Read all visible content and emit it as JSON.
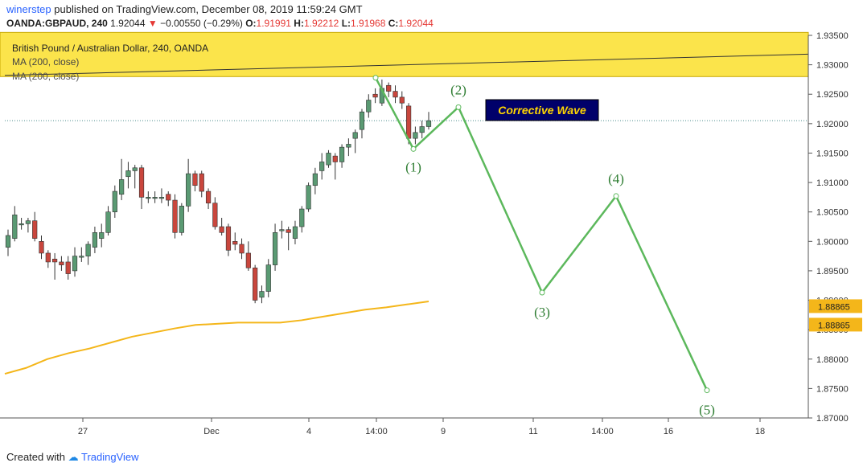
{
  "header": {
    "user": "winerstep",
    "published_text": "published on TradingView.com, December 08, 2019 11:59:24 GMT",
    "symbol_line": "OANDA:GBPAUD, 240",
    "last_price": "1.92044",
    "change": "−0.00550 (−0.29%)",
    "open_label": "O:",
    "open": "1.91991",
    "high_label": "H:",
    "high": "1.92212",
    "low_label": "L:",
    "low": "1.91968",
    "close_label": "C:",
    "close": "1.92044"
  },
  "legend": {
    "title": "British Pound / Australian Dollar, 240, OANDA",
    "ma1": "MA (200, close)",
    "ma2": "MA (200, close)"
  },
  "annotation": {
    "text": "Corrective Wave",
    "bg": "#00006a",
    "fg": "#ffd600"
  },
  "colors": {
    "up": "#5a9a73",
    "down": "#c9463d",
    "ma": "#f4b61a",
    "wave": "#5cb85c",
    "wave_label": "#2e7d32",
    "zone": "#fbe44b",
    "axis_badge": "#f4b61a"
  },
  "footer": {
    "created": "Created with",
    "brand": "TradingView"
  },
  "chart_data": {
    "type": "candlestick",
    "ylim": [
      1.87,
      1.935
    ],
    "x_ticks": [
      "27",
      "Dec",
      "4",
      "14:00",
      "9",
      "11",
      "14:00",
      "16",
      "18"
    ],
    "y_ticks": [
      "1.93500",
      "1.93000",
      "1.92500",
      "1.92000",
      "1.91500",
      "1.91000",
      "1.90500",
      "1.90000",
      "1.89500",
      "1.89000",
      "1.88500",
      "1.88000",
      "1.87500",
      "1.87000"
    ],
    "price_badges": [
      "1.88865",
      "1.88865"
    ],
    "last_price_line": 1.9205,
    "resistance_zone": [
      1.928,
      1.9355
    ],
    "trendline": [
      1.9282,
      1.9318
    ],
    "candles": [
      [
        1.899,
        1.901,
        1.8975,
        1.902
      ],
      [
        1.9005,
        1.9045,
        1.9,
        1.906
      ],
      [
        1.903,
        1.903,
        1.902,
        1.904
      ],
      [
        1.903,
        1.9035,
        1.9015,
        1.904
      ],
      [
        1.9035,
        1.9005,
        1.9,
        1.905
      ],
      [
        1.9,
        1.898,
        1.897,
        1.901
      ],
      [
        1.898,
        1.8965,
        1.8955,
        1.8985
      ],
      [
        1.897,
        1.8965,
        1.8935,
        1.898
      ],
      [
        1.8965,
        1.896,
        1.895,
        1.8975
      ],
      [
        1.8965,
        1.8945,
        1.8935,
        1.8975
      ],
      [
        1.895,
        1.8975,
        1.894,
        1.899
      ],
      [
        1.8975,
        1.8975,
        1.8965,
        1.899
      ],
      [
        1.8975,
        1.8995,
        1.896,
        1.9
      ],
      [
        1.899,
        1.9015,
        1.898,
        1.9025
      ],
      [
        1.9005,
        1.9015,
        1.899,
        1.903
      ],
      [
        1.9015,
        1.905,
        1.901,
        1.906
      ],
      [
        1.905,
        1.9085,
        1.904,
        1.9095
      ],
      [
        1.908,
        1.9105,
        1.907,
        1.914
      ],
      [
        1.911,
        1.912,
        1.909,
        1.9135
      ],
      [
        1.912,
        1.9125,
        1.909,
        1.913
      ],
      [
        1.9125,
        1.9075,
        1.9055,
        1.913
      ],
      [
        1.9075,
        1.9075,
        1.9065,
        1.9085
      ],
      [
        1.9075,
        1.9075,
        1.9065,
        1.9085
      ],
      [
        1.9075,
        1.9075,
        1.9065,
        1.909
      ],
      [
        1.908,
        1.907,
        1.906,
        1.9085
      ],
      [
        1.907,
        1.9015,
        1.9005,
        1.908
      ],
      [
        1.9015,
        1.906,
        1.901,
        1.9065
      ],
      [
        1.906,
        1.9115,
        1.905,
        1.914
      ],
      [
        1.9115,
        1.9095,
        1.9085,
        1.912
      ],
      [
        1.9115,
        1.9085,
        1.9075,
        1.912
      ],
      [
        1.9085,
        1.9065,
        1.9055,
        1.909
      ],
      [
        1.9065,
        1.9025,
        1.902,
        1.9075
      ],
      [
        1.9025,
        1.9015,
        1.901,
        1.904
      ],
      [
        1.9025,
        1.8985,
        1.8975,
        1.903
      ],
      [
        1.9,
        1.8995,
        1.8985,
        1.9015
      ],
      [
        1.8995,
        1.898,
        1.897,
        1.9005
      ],
      [
        1.898,
        1.8955,
        1.895,
        1.9
      ],
      [
        1.8955,
        1.89,
        1.8895,
        1.896
      ],
      [
        1.8905,
        1.8915,
        1.8895,
        1.8925
      ],
      [
        1.8915,
        1.896,
        1.8905,
        1.897
      ],
      [
        1.896,
        1.9015,
        1.895,
        1.903
      ],
      [
        1.902,
        1.902,
        1.9005,
        1.9035
      ],
      [
        1.902,
        1.9015,
        1.8985,
        1.9025
      ],
      [
        1.9005,
        1.9025,
        1.8995,
        1.9035
      ],
      [
        1.9025,
        1.9055,
        1.9015,
        1.906
      ],
      [
        1.9055,
        1.9095,
        1.905,
        1.91
      ],
      [
        1.9095,
        1.9115,
        1.908,
        1.9125
      ],
      [
        1.912,
        1.9135,
        1.9105,
        1.915
      ],
      [
        1.913,
        1.915,
        1.9125,
        1.9155
      ],
      [
        1.9145,
        1.9135,
        1.9105,
        1.915
      ],
      [
        1.9135,
        1.916,
        1.9125,
        1.9165
      ],
      [
        1.916,
        1.9165,
        1.9145,
        1.9175
      ],
      [
        1.9175,
        1.9185,
        1.915,
        1.919
      ],
      [
        1.919,
        1.922,
        1.9175,
        1.9225
      ],
      [
        1.922,
        1.924,
        1.921,
        1.925
      ],
      [
        1.925,
        1.9245,
        1.9235,
        1.926
      ],
      [
        1.9235,
        1.926,
        1.923,
        1.9275
      ],
      [
        1.9265,
        1.9255,
        1.9245,
        1.927
      ],
      [
        1.9255,
        1.9245,
        1.9235,
        1.9265
      ],
      [
        1.9245,
        1.9235,
        1.9225,
        1.9255
      ],
      [
        1.923,
        1.9175,
        1.9165,
        1.9235
      ],
      [
        1.9175,
        1.9185,
        1.9165,
        1.9195
      ],
      [
        1.9185,
        1.9195,
        1.9175,
        1.9205
      ],
      [
        1.9195,
        1.9205,
        1.919,
        1.922
      ]
    ],
    "ma_series": [
      [
        0,
        1.8775
      ],
      [
        0.05,
        1.8785
      ],
      [
        0.1,
        1.88
      ],
      [
        0.15,
        1.881
      ],
      [
        0.2,
        1.8818
      ],
      [
        0.25,
        1.8828
      ],
      [
        0.3,
        1.8838
      ],
      [
        0.35,
        1.8845
      ],
      [
        0.4,
        1.8852
      ],
      [
        0.45,
        1.8858
      ],
      [
        0.5,
        1.886
      ],
      [
        0.55,
        1.8862
      ],
      [
        0.6,
        1.8862
      ],
      [
        0.65,
        1.8862
      ],
      [
        0.7,
        1.8866
      ],
      [
        0.75,
        1.8872
      ],
      [
        0.8,
        1.8878
      ],
      [
        0.85,
        1.8884
      ],
      [
        0.9,
        1.8888
      ],
      [
        0.95,
        1.8893
      ],
      [
        1.0,
        1.8898
      ]
    ],
    "wave_points": [
      {
        "label": "",
        "price": 1.9278
      },
      {
        "label": "(1)",
        "price": 1.9157
      },
      {
        "label": "(2)",
        "price": 1.9228
      },
      {
        "label": "(3)",
        "price": 1.8913
      },
      {
        "label": "(4)",
        "price": 1.9077
      },
      {
        "label": "(5)",
        "price": 1.8747
      }
    ]
  }
}
